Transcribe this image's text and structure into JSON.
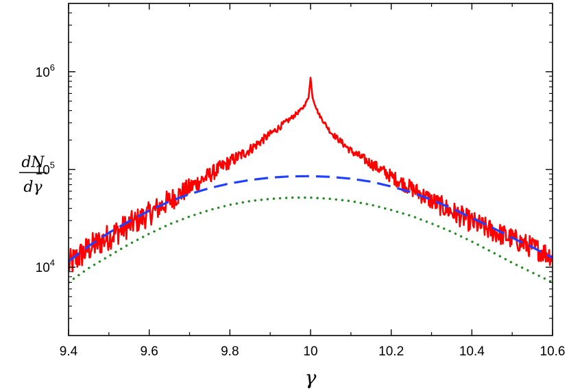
{
  "chart_data": {
    "type": "line",
    "title": "",
    "xlabel": "γ",
    "ylabel": {
      "numerator": "dN",
      "denominator": "dγ"
    },
    "xlim": [
      9.4,
      10.6
    ],
    "ylim": [
      2000,
      5000000
    ],
    "yscale": "log",
    "grid": false,
    "legend": "none",
    "x_ticks": [
      {
        "value": 9.4,
        "label": "9.4"
      },
      {
        "value": 9.6,
        "label": "9.6"
      },
      {
        "value": 9.8,
        "label": "9.8"
      },
      {
        "value": 10.0,
        "label": "10"
      },
      {
        "value": 10.2,
        "label": "10.2"
      },
      {
        "value": 10.4,
        "label": "10.4"
      },
      {
        "value": 10.6,
        "label": "10.6"
      }
    ],
    "y_ticks": [
      {
        "value": 10000,
        "base": "10",
        "exp": "4"
      },
      {
        "value": 100000,
        "base": "10",
        "exp": "5"
      },
      {
        "value": 1000000,
        "base": "10",
        "exp": "6"
      }
    ],
    "series": [
      {
        "style": "solid",
        "color": "#ff0000",
        "noisy": true,
        "x": [
          9.4,
          9.45,
          9.5,
          9.55,
          9.6,
          9.65,
          9.7,
          9.75,
          9.8,
          9.85,
          9.9,
          9.95,
          9.98,
          9.995,
          10.0,
          10.005,
          10.02,
          10.05,
          10.1,
          10.15,
          10.2,
          10.25,
          10.3,
          10.35,
          10.4,
          10.45,
          10.5,
          10.55,
          10.6
        ],
        "y": [
          10500,
          15500,
          20500,
          27000,
          35000,
          48000,
          65000,
          88000,
          120000,
          160000,
          230000,
          330000,
          420000,
          540000,
          870000,
          540000,
          370000,
          240000,
          155000,
          115000,
          85000,
          64000,
          48000,
          37000,
          29000,
          23500,
          19500,
          16000,
          13000
        ]
      },
      {
        "style": "dashed",
        "color": "#2040ff",
        "x": [
          9.4,
          9.45,
          9.5,
          9.55,
          9.6,
          9.65,
          9.7,
          9.75,
          9.8,
          9.85,
          9.9,
          9.95,
          10.0,
          10.05,
          10.1,
          10.15,
          10.2,
          10.25,
          10.3,
          10.35,
          10.4,
          10.45,
          10.5,
          10.55,
          10.6
        ],
        "y": [
          11500,
          16500,
          22500,
          29500,
          38000,
          47000,
          56000,
          64500,
          72000,
          78000,
          82500,
          85000,
          85500,
          84000,
          80500,
          75000,
          67000,
          58500,
          49000,
          40000,
          32000,
          25500,
          20000,
          16000,
          12500
        ]
      },
      {
        "style": "dotted",
        "color": "#228b22",
        "x": [
          9.4,
          9.45,
          9.5,
          9.55,
          9.6,
          9.65,
          9.7,
          9.75,
          9.8,
          9.85,
          9.9,
          9.95,
          10.0,
          10.05,
          10.1,
          10.15,
          10.2,
          10.25,
          10.3,
          10.35,
          10.4,
          10.45,
          10.5,
          10.55,
          10.6
        ],
        "y": [
          7000,
          9800,
          13000,
          17200,
          22000,
          27500,
          33000,
          38500,
          43500,
          47500,
          50000,
          51500,
          51500,
          50000,
          47500,
          43500,
          38500,
          33500,
          28000,
          23000,
          18300,
          14300,
          11100,
          8800,
          7000
        ]
      }
    ]
  }
}
